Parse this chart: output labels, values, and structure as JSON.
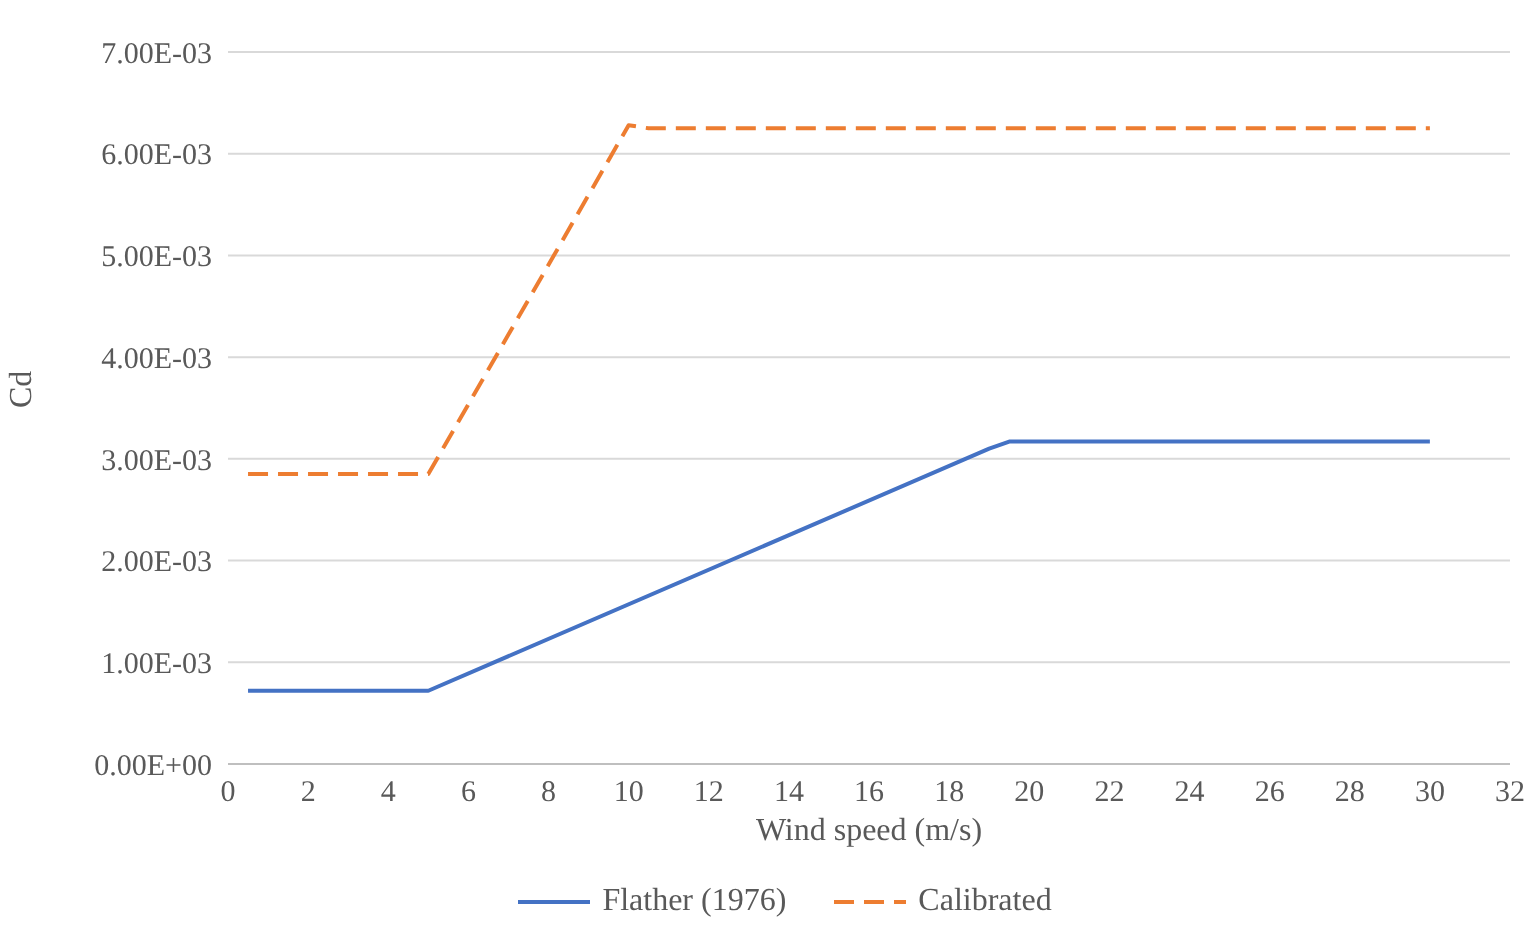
{
  "chart_data": {
    "type": "line",
    "xlabel": "Wind speed (m/s)",
    "ylabel": "Cd",
    "xlim": [
      0,
      32
    ],
    "xticks": [
      0,
      2,
      4,
      6,
      8,
      10,
      12,
      14,
      16,
      18,
      20,
      22,
      24,
      26,
      28,
      30,
      32
    ],
    "ylim": [
      0,
      0.007
    ],
    "yticks": [
      {
        "value": 0,
        "label": "0.00E+00"
      },
      {
        "value": 0.001,
        "label": "1.00E-03"
      },
      {
        "value": 0.002,
        "label": "2.00E-03"
      },
      {
        "value": 0.003,
        "label": "3.00E-03"
      },
      {
        "value": 0.004,
        "label": "4.00E-03"
      },
      {
        "value": 0.005,
        "label": "5.00E-03"
      },
      {
        "value": 0.006,
        "label": "6.00E-03"
      },
      {
        "value": 0.007,
        "label": "7.00E-03"
      }
    ],
    "grid": "y",
    "legend": "bottom",
    "marker": "none",
    "series": [
      {
        "name": "Flather (1976)",
        "color": "#4472c4",
        "line_style": "solid",
        "x": [
          0.5,
          5,
          19,
          19.5,
          30
        ],
        "values": [
          0.00072,
          0.00072,
          0.0031,
          0.00317,
          0.00317
        ]
      },
      {
        "name": "Calibrated",
        "color": "#ed7d31",
        "line_style": "dashed",
        "x": [
          0.5,
          5,
          10,
          10.5,
          30
        ],
        "values": [
          0.00285,
          0.00285,
          0.00628,
          0.00625,
          0.00625
        ]
      }
    ]
  }
}
